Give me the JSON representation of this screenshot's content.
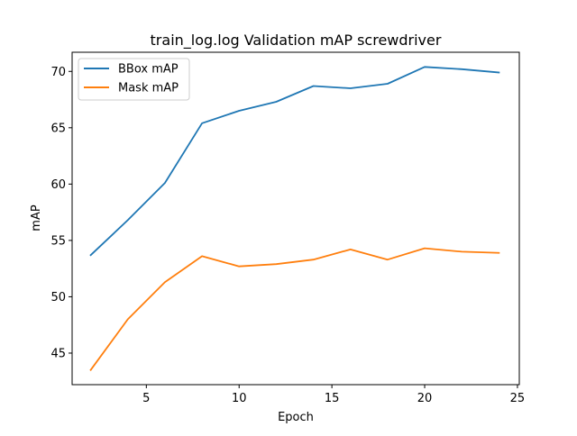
{
  "chart_data": {
    "type": "line",
    "title": "train_log.log Validation mAP screwdriver",
    "xlabel": "Epoch",
    "ylabel": "mAP",
    "xlim": [
      1.0,
      25.1
    ],
    "ylim": [
      42.2,
      71.7
    ],
    "x_ticks": [
      5,
      10,
      15,
      20,
      25
    ],
    "y_ticks": [
      45,
      50,
      55,
      60,
      65,
      70
    ],
    "grid": false,
    "legend_position": "upper-left",
    "x": [
      2,
      4,
      6,
      8,
      10,
      12,
      14,
      16,
      18,
      20,
      22,
      24
    ],
    "series": [
      {
        "name": "BBox mAP",
        "color": "#1f77b4",
        "values": [
          53.7,
          56.8,
          60.1,
          65.4,
          66.5,
          67.3,
          68.7,
          68.5,
          68.9,
          70.4,
          70.2,
          69.9
        ]
      },
      {
        "name": "Mask mAP",
        "color": "#ff7f0e",
        "values": [
          43.5,
          48.0,
          51.3,
          53.6,
          52.7,
          52.9,
          53.3,
          54.2,
          53.3,
          54.3,
          54.0,
          53.9
        ]
      }
    ]
  }
}
